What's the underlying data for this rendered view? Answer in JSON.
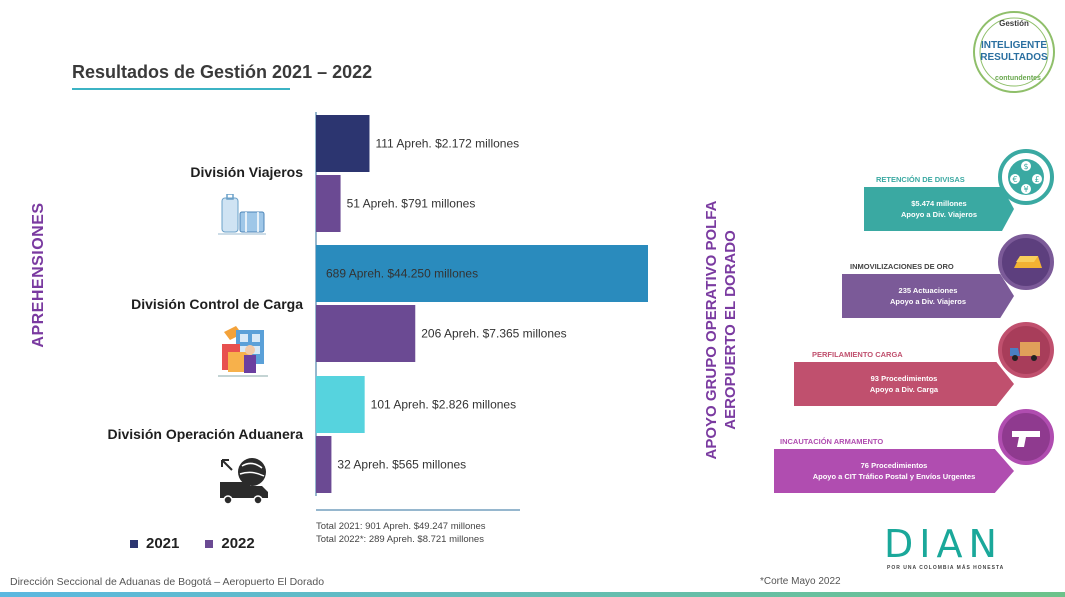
{
  "title": "Resultados de Gestión 2021 – 2022",
  "seal": {
    "top": "Gestión",
    "line1": "INTELIGENTE",
    "line2": "RESULTADOS",
    "bottom": "contundentes"
  },
  "left_vertical_label": "APREHENSIONES",
  "divisions": [
    {
      "name": "División Viajeros",
      "icon": "luggage-icon"
    },
    {
      "name": "División Control de Carga",
      "icon": "cargo-handling-icon"
    },
    {
      "name": "División Operación Aduanera",
      "icon": "customs-truck-icon"
    }
  ],
  "chart_data": {
    "type": "bar",
    "orientation": "horizontal",
    "categories": [
      "División Viajeros",
      "División Control de Carga",
      "División Operación Aduanera"
    ],
    "series": [
      {
        "name": "2021",
        "color": "#2c3570",
        "apprehensions": [
          111,
          689,
          101
        ],
        "millions": [
          2172,
          44250,
          2826
        ],
        "labels": [
          "111 Apreh. $2.172 millones",
          "689 Apreh. $44.250 millones",
          "101 Apreh. $2.826 millones"
        ],
        "colors": [
          "#2c3570",
          "#2a8bbd",
          "#56d3de"
        ]
      },
      {
        "name": "2022",
        "color": "#6b4a93",
        "apprehensions": [
          51,
          206,
          32
        ],
        "millions": [
          791,
          7365,
          565
        ],
        "labels": [
          "51 Apreh. $791 millones",
          "206 Apreh. $7.365 millones",
          "32 Apreh. $565 millones"
        ],
        "colors": [
          "#6b4a93",
          "#6b4a93",
          "#6b4a93"
        ]
      }
    ],
    "bar_lengths_basis": "apprehensions"
  },
  "legend": [
    {
      "label": "2021",
      "color": "#2c3570"
    },
    {
      "label": "2022",
      "color": "#6b4a93"
    }
  ],
  "totals": [
    "Total 2021: 901 Apreh. $49.247 millones",
    "Total 2022*: 289 Apreh. $8.721 millones"
  ],
  "right_vertical_label": [
    "APOYO GRUPO OPERATIVO POLFA",
    "AEROPUERTO EL DORADO"
  ],
  "support_items": [
    {
      "title": "RETENCIÓN DE DIVISAS",
      "line1": "$5.474 millones",
      "line2": "Apoyo a Div. Viajeros",
      "color": "#3aa9a2",
      "title_color": "#3aa9a2",
      "icon": "currency-exchange-icon"
    },
    {
      "title": "INMOVILIZACIONES DE ORO",
      "line1": "235 Actuaciones",
      "line2": "Apoyo a Div. Viajeros",
      "color": "#7b5a98",
      "title_color": "#444444",
      "icon": "gold-bar-icon"
    },
    {
      "title": "PERFILAMIENTO CARGA",
      "line1": "93 Procedimientos",
      "line2": "Apoyo a Div. Carga",
      "color": "#c0506e",
      "title_color": "#c0506e",
      "icon": "truck-icon"
    },
    {
      "title": "INCAUTACIÓN ARMAMENTO",
      "line1": "76 Procedimientos",
      "line2": "Apoyo a CIT Tráfico Postal y Envíos Urgentes",
      "color": "#b04db0",
      "title_color": "#b04db0",
      "icon": "pistol-icon"
    }
  ],
  "dian": {
    "name": "DIAN",
    "tagline": "POR UNA COLOMBIA MÁS HONESTA",
    "color": "#1aa89a"
  },
  "footer": "Dirección Seccional de Aduanas de Bogotá – Aeropuerto El Dorado",
  "footnote": "*Corte Mayo 2022"
}
